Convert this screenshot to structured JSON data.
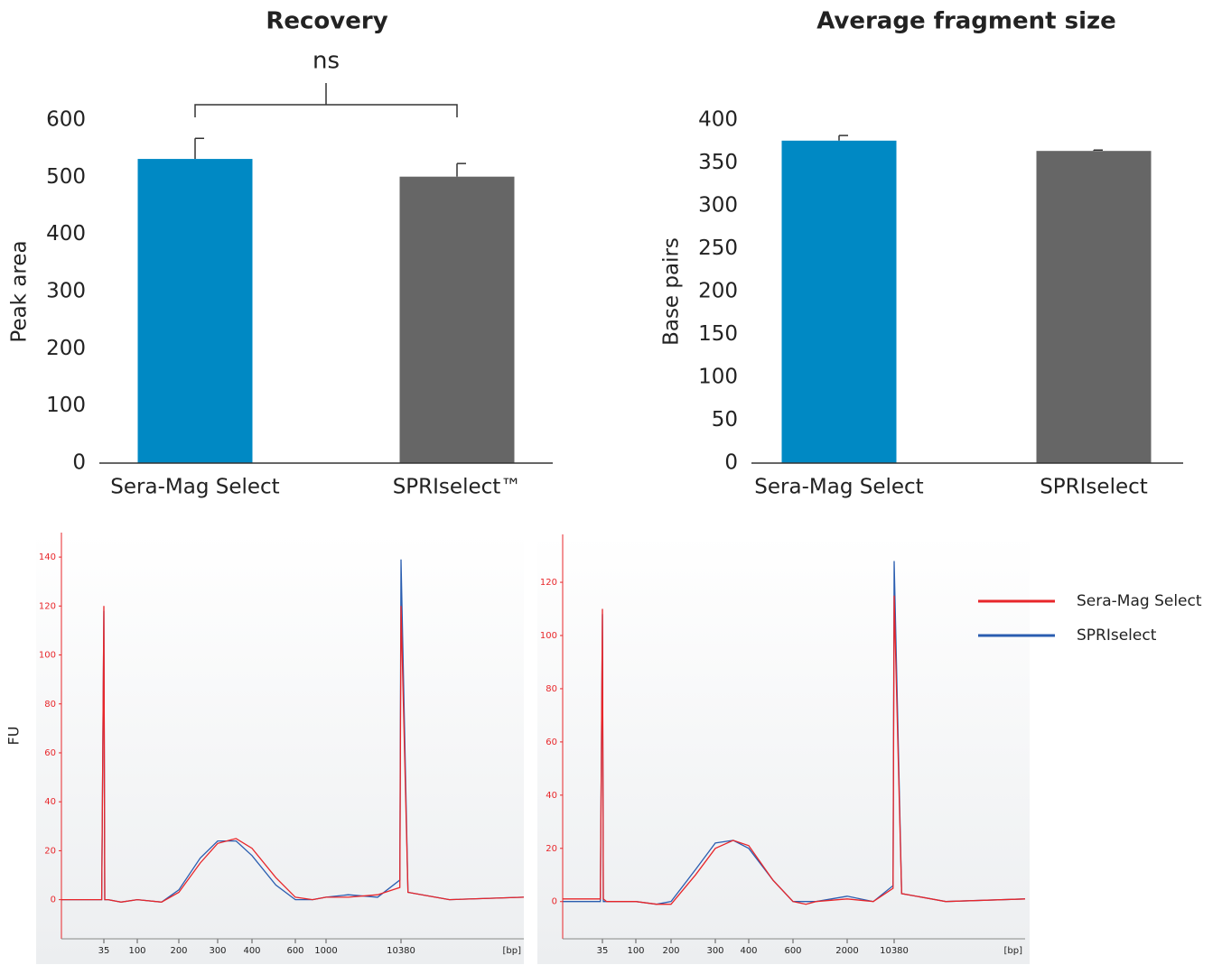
{
  "chart_data": [
    {
      "type": "bar",
      "title": "Recovery",
      "ylabel": "Peak area",
      "annotation": "ns",
      "categories": [
        "Sera-Mag Select",
        "SPRIselect™"
      ],
      "values": [
        532,
        501
      ],
      "errors": [
        36,
        23
      ],
      "colors": [
        "#0089c4",
        "#666666"
      ],
      "ylim": [
        0,
        600
      ],
      "yticks": [
        0,
        100,
        200,
        300,
        400,
        500,
        600
      ]
    },
    {
      "type": "bar",
      "title": "Average fragment size",
      "ylabel": "Base pairs",
      "categories": [
        "Sera-Mag Select",
        "SPRIselect"
      ],
      "values": [
        376,
        364
      ],
      "errors": [
        6,
        1
      ],
      "colors": [
        "#0089c4",
        "#666666"
      ],
      "ylim": [
        0,
        400
      ],
      "yticks": [
        0,
        50,
        100,
        150,
        200,
        250,
        300,
        350,
        400
      ]
    },
    {
      "type": "line",
      "ylabel": "FU",
      "xlabel": "[bp]",
      "x": [
        20,
        30,
        34,
        35,
        36,
        40,
        60,
        100,
        150,
        200,
        250,
        300,
        350,
        400,
        500,
        600,
        800,
        1000,
        2000,
        5000,
        10000,
        10380,
        10600,
        12000,
        15000
      ],
      "xlim": [
        20,
        15000
      ],
      "xticks": [
        35,
        100,
        200,
        300,
        400,
        600,
        1000,
        10380
      ],
      "ylim": [
        -16,
        150
      ],
      "yticks": [
        0,
        20,
        40,
        60,
        80,
        100,
        120,
        140
      ],
      "series": [
        {
          "name": "SPRIselect",
          "color": "#2a5db0",
          "values": [
            0,
            0,
            0,
            118,
            0,
            0,
            -1,
            0,
            -1,
            4,
            17,
            24,
            24,
            18,
            6,
            0,
            0,
            1,
            2,
            1,
            8,
            139,
            3,
            0,
            1
          ]
        },
        {
          "name": "Sera-Mag Select",
          "color": "#e8262a",
          "values": [
            0,
            0,
            0,
            120,
            0,
            0,
            -1,
            0,
            -1,
            3,
            15,
            23,
            25,
            21,
            9,
            1,
            0,
            1,
            1,
            2,
            5,
            120,
            3,
            0,
            1
          ]
        }
      ]
    },
    {
      "type": "line",
      "xlabel": "[bp]",
      "x": [
        20,
        30,
        34,
        35,
        36,
        40,
        60,
        100,
        150,
        200,
        250,
        300,
        350,
        400,
        500,
        600,
        800,
        1000,
        2000,
        5000,
        10000,
        10380,
        10600,
        12000,
        15000
      ],
      "xlim": [
        20,
        15000
      ],
      "xticks": [
        35,
        100,
        200,
        300,
        400,
        600,
        2000,
        10380
      ],
      "ylim": [
        -14,
        138
      ],
      "yticks": [
        0,
        20,
        40,
        60,
        80,
        100,
        120
      ],
      "series": [
        {
          "color": "#2a5db0",
          "values": [
            0,
            0,
            0,
            108,
            0,
            0,
            0,
            0,
            -1,
            0,
            12,
            22,
            23,
            20,
            8,
            0,
            0,
            0,
            2,
            0,
            6,
            128,
            3,
            0,
            1
          ]
        },
        {
          "color": "#e8262a",
          "values": [
            1,
            1,
            1,
            110,
            1,
            0,
            0,
            0,
            -1,
            -1,
            10,
            20,
            23,
            21,
            8,
            0,
            -1,
            0,
            1,
            0,
            5,
            115,
            3,
            0,
            1
          ]
        }
      ]
    }
  ]
}
